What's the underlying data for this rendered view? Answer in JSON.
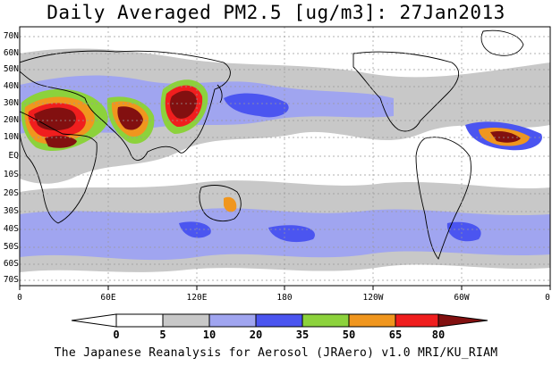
{
  "title": "Daily Averaged PM2.5 [ug/m3]: 27Jan2013",
  "lat_labels": [
    "70N",
    "60N",
    "50N",
    "40N",
    "30N",
    "20N",
    "10N",
    "EQ",
    "10S",
    "20S",
    "30S",
    "40S",
    "50S",
    "60S",
    "70S"
  ],
  "lon_labels": [
    "0",
    "60E",
    "120E",
    "180",
    "120W",
    "60W",
    "0"
  ],
  "colorbar": {
    "levels": [
      "0",
      "5",
      "10",
      "20",
      "35",
      "50",
      "65",
      "80"
    ],
    "colors": [
      "#ffffff",
      "#c8c8c8",
      "#a0a5f0",
      "#4b55f0",
      "#8cd23c",
      "#f0961e",
      "#f01e1e",
      "#821010"
    ]
  },
  "footer": "The Japanese Reanalysis for Aerosol (JRAero) v1.0 MRI/KU_RIAM"
}
